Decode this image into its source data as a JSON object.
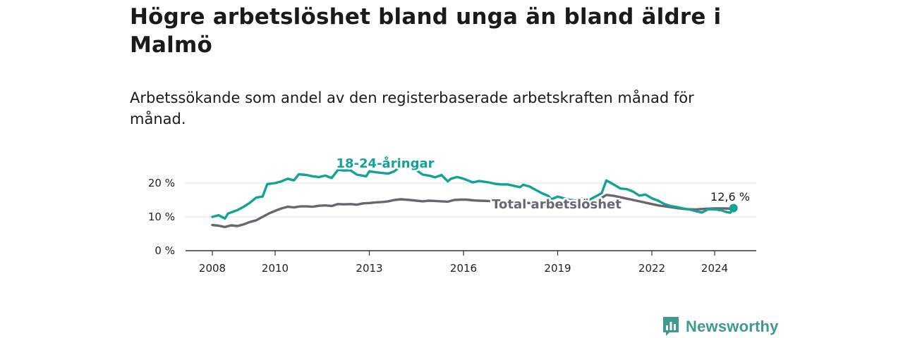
{
  "header": {
    "title": "Högre arbetslöshet bland unga än bland äldre i Malmö",
    "subtitle": "Arbetssökande som andel av den registerbaserade arbetskraften månad för månad."
  },
  "brand": {
    "name": "Newsworthy",
    "icon": "bar-chart-bubble-icon"
  },
  "colors": {
    "youth": "#13a296",
    "total": "#6b6570",
    "grid": "#dddddd",
    "axis": "#333333",
    "brand": "#3f9a8e"
  },
  "chart_data": {
    "type": "line",
    "xlabel": "",
    "ylabel": "",
    "xlim": [
      2008,
      2025.4
    ],
    "ylim": [
      0,
      25
    ],
    "yticks": [
      {
        "value": 0,
        "label": "0 %"
      },
      {
        "value": 10,
        "label": "10 %"
      },
      {
        "value": 20,
        "label": "20 %"
      }
    ],
    "xticks": [
      {
        "value": 2008,
        "label": "2008"
      },
      {
        "value": 2010,
        "label": "2010"
      },
      {
        "value": 2013,
        "label": "2013"
      },
      {
        "value": 2016,
        "label": "2016"
      },
      {
        "value": 2019,
        "label": "2019"
      },
      {
        "value": 2022,
        "label": "2022"
      },
      {
        "value": 2024,
        "label": "2024"
      }
    ],
    "grid": true,
    "series": [
      {
        "name": "18-24-åringar",
        "points": [
          [
            2008.0,
            10.0
          ],
          [
            2008.2,
            10.5
          ],
          [
            2008.4,
            9.5
          ],
          [
            2008.5,
            11.0
          ],
          [
            2008.8,
            12.0
          ],
          [
            2009.0,
            13.0
          ],
          [
            2009.2,
            14.2
          ],
          [
            2009.4,
            15.7
          ],
          [
            2009.6,
            16.0
          ],
          [
            2009.75,
            19.7
          ],
          [
            2010.0,
            20.0
          ],
          [
            2010.2,
            20.5
          ],
          [
            2010.4,
            21.3
          ],
          [
            2010.6,
            20.8
          ],
          [
            2010.75,
            22.6
          ],
          [
            2011.0,
            22.4
          ],
          [
            2011.2,
            22.0
          ],
          [
            2011.4,
            21.8
          ],
          [
            2011.6,
            22.2
          ],
          [
            2011.8,
            21.5
          ],
          [
            2012.0,
            23.9
          ],
          [
            2012.2,
            23.7
          ],
          [
            2012.4,
            23.8
          ],
          [
            2012.6,
            22.5
          ],
          [
            2012.9,
            22.0
          ],
          [
            2013.0,
            23.5
          ],
          [
            2013.2,
            23.2
          ],
          [
            2013.4,
            23.0
          ],
          [
            2013.6,
            22.8
          ],
          [
            2013.8,
            23.5
          ],
          [
            2014.0,
            25.0
          ],
          [
            2014.3,
            24.5
          ],
          [
            2014.5,
            23.8
          ],
          [
            2014.7,
            22.5
          ],
          [
            2014.9,
            22.2
          ],
          [
            2015.1,
            21.7
          ],
          [
            2015.3,
            22.4
          ],
          [
            2015.5,
            20.5
          ],
          [
            2015.6,
            21.3
          ],
          [
            2015.8,
            21.8
          ],
          [
            2016.0,
            21.3
          ],
          [
            2016.3,
            20.2
          ],
          [
            2016.5,
            20.6
          ],
          [
            2016.8,
            20.2
          ],
          [
            2017.0,
            19.8
          ],
          [
            2017.2,
            19.6
          ],
          [
            2017.4,
            19.6
          ],
          [
            2017.6,
            19.2
          ],
          [
            2017.8,
            18.8
          ],
          [
            2017.9,
            19.5
          ],
          [
            2018.1,
            19.0
          ],
          [
            2018.3,
            18.0
          ],
          [
            2018.5,
            17.0
          ],
          [
            2018.7,
            16.2
          ],
          [
            2018.8,
            15.2
          ],
          [
            2019.0,
            16.0
          ],
          [
            2019.2,
            15.5
          ],
          [
            2019.4,
            15.0
          ],
          [
            2019.6,
            14.8
          ],
          [
            2019.8,
            15.5
          ],
          [
            2020.0,
            15.0
          ],
          [
            2020.2,
            16.0
          ],
          [
            2020.4,
            17.0
          ],
          [
            2020.55,
            20.8
          ],
          [
            2020.8,
            19.5
          ],
          [
            2021.0,
            18.4
          ],
          [
            2021.2,
            18.2
          ],
          [
            2021.4,
            17.5
          ],
          [
            2021.6,
            16.3
          ],
          [
            2021.8,
            16.6
          ],
          [
            2022.0,
            15.5
          ],
          [
            2022.2,
            14.8
          ],
          [
            2022.4,
            13.8
          ],
          [
            2022.6,
            13.2
          ],
          [
            2022.8,
            12.9
          ],
          [
            2023.0,
            12.5
          ],
          [
            2023.2,
            12.2
          ],
          [
            2023.4,
            11.7
          ],
          [
            2023.6,
            11.3
          ],
          [
            2023.8,
            12.3
          ],
          [
            2024.0,
            12.2
          ],
          [
            2024.2,
            12.0
          ],
          [
            2024.35,
            11.5
          ],
          [
            2024.5,
            11.2
          ],
          [
            2024.6,
            12.6
          ]
        ]
      },
      {
        "name": "Total arbetslöshet",
        "points": [
          [
            2008.0,
            7.6
          ],
          [
            2008.2,
            7.4
          ],
          [
            2008.4,
            7.0
          ],
          [
            2008.6,
            7.5
          ],
          [
            2008.8,
            7.3
          ],
          [
            2009.0,
            7.8
          ],
          [
            2009.2,
            8.5
          ],
          [
            2009.4,
            9.0
          ],
          [
            2009.6,
            10.0
          ],
          [
            2009.8,
            11.0
          ],
          [
            2010.0,
            11.8
          ],
          [
            2010.2,
            12.5
          ],
          [
            2010.4,
            13.0
          ],
          [
            2010.6,
            12.8
          ],
          [
            2010.8,
            13.1
          ],
          [
            2011.0,
            13.1
          ],
          [
            2011.2,
            13.0
          ],
          [
            2011.4,
            13.3
          ],
          [
            2011.6,
            13.4
          ],
          [
            2011.8,
            13.2
          ],
          [
            2012.0,
            13.8
          ],
          [
            2012.2,
            13.7
          ],
          [
            2012.4,
            13.8
          ],
          [
            2012.6,
            13.6
          ],
          [
            2012.8,
            14.0
          ],
          [
            2013.0,
            14.1
          ],
          [
            2013.2,
            14.3
          ],
          [
            2013.4,
            14.4
          ],
          [
            2013.6,
            14.6
          ],
          [
            2013.8,
            15.0
          ],
          [
            2014.0,
            15.2
          ],
          [
            2014.3,
            15.0
          ],
          [
            2014.5,
            14.8
          ],
          [
            2014.7,
            14.6
          ],
          [
            2014.9,
            14.8
          ],
          [
            2015.1,
            14.7
          ],
          [
            2015.3,
            14.6
          ],
          [
            2015.5,
            14.5
          ],
          [
            2015.7,
            15.0
          ],
          [
            2015.9,
            15.1
          ],
          [
            2016.1,
            15.1
          ],
          [
            2016.3,
            14.9
          ],
          [
            2016.5,
            14.8
          ],
          [
            2016.8,
            14.7
          ],
          [
            2017.0,
            14.6
          ],
          [
            2017.3,
            14.4
          ],
          [
            2017.6,
            14.3
          ],
          [
            2017.9,
            14.3
          ],
          [
            2018.2,
            14.0
          ],
          [
            2018.5,
            13.7
          ],
          [
            2018.8,
            13.3
          ],
          [
            2019.1,
            13.0
          ],
          [
            2019.4,
            13.0
          ],
          [
            2019.7,
            13.1
          ],
          [
            2020.0,
            13.5
          ],
          [
            2020.3,
            15.0
          ],
          [
            2020.55,
            16.5
          ],
          [
            2020.8,
            16.2
          ],
          [
            2021.0,
            15.8
          ],
          [
            2021.3,
            15.2
          ],
          [
            2021.6,
            14.6
          ],
          [
            2021.9,
            14.0
          ],
          [
            2022.2,
            13.4
          ],
          [
            2022.5,
            13.0
          ],
          [
            2022.8,
            12.6
          ],
          [
            2023.1,
            12.3
          ],
          [
            2023.4,
            12.2
          ],
          [
            2023.7,
            12.4
          ],
          [
            2024.0,
            12.5
          ],
          [
            2024.3,
            12.5
          ],
          [
            2024.6,
            12.4
          ]
        ]
      }
    ],
    "annotations": [
      {
        "text": "18-24-åringar",
        "series": "18-24-åringar"
      },
      {
        "text": "Total arbetslöshet",
        "series": "Total arbetslöshet"
      },
      {
        "text": "12,6 %",
        "series": "18-24-åringar",
        "at": "last"
      }
    ]
  }
}
